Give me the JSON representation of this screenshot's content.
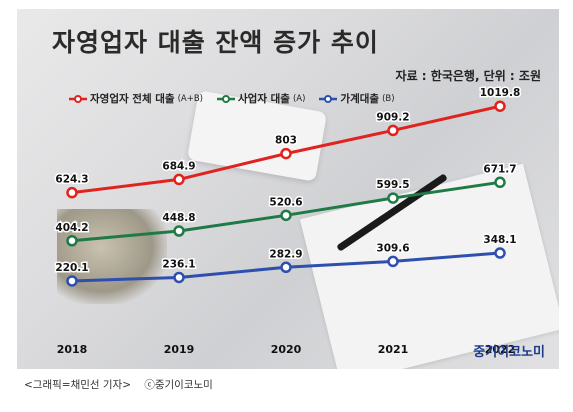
{
  "title": "자영업자 대출 잔액 증가 추이",
  "source": "자료 : 한국은행, 단위 : 조원",
  "brand": "중기이코노미",
  "caption": {
    "credit": "<그래픽=채민선 기자>",
    "copyright": "ⓒ중기이코노미"
  },
  "colors": {
    "total": "#e0231f",
    "business": "#1f7a46",
    "household": "#2e4fae"
  },
  "chart_data": {
    "type": "line",
    "categories": [
      "2018",
      "2019",
      "2020",
      "2021",
      "2022"
    ],
    "series": [
      {
        "name": "자영업자 전체 대출",
        "suffix": "(A+B)",
        "key": "total",
        "values": [
          624.3,
          684.9,
          803,
          909.2,
          1019.8
        ],
        "labels": [
          "624.3",
          "684.9",
          "803",
          "909.2",
          "1019.8"
        ]
      },
      {
        "name": "사업자 대출",
        "suffix": "(A)",
        "key": "business",
        "values": [
          404.2,
          448.8,
          520.6,
          599.5,
          671.7
        ],
        "labels": [
          "404.2",
          "448.8",
          "520.6",
          "599.5",
          "671.7"
        ]
      },
      {
        "name": "가계대출",
        "suffix": "(B)",
        "key": "household",
        "values": [
          220.1,
          236.1,
          282.9,
          309.6,
          348.1
        ],
        "labels": [
          "220.1",
          "236.1",
          "282.9",
          "309.6",
          "348.1"
        ]
      }
    ],
    "xlabel": "",
    "ylabel": "",
    "legend": "top",
    "grid": false
  }
}
